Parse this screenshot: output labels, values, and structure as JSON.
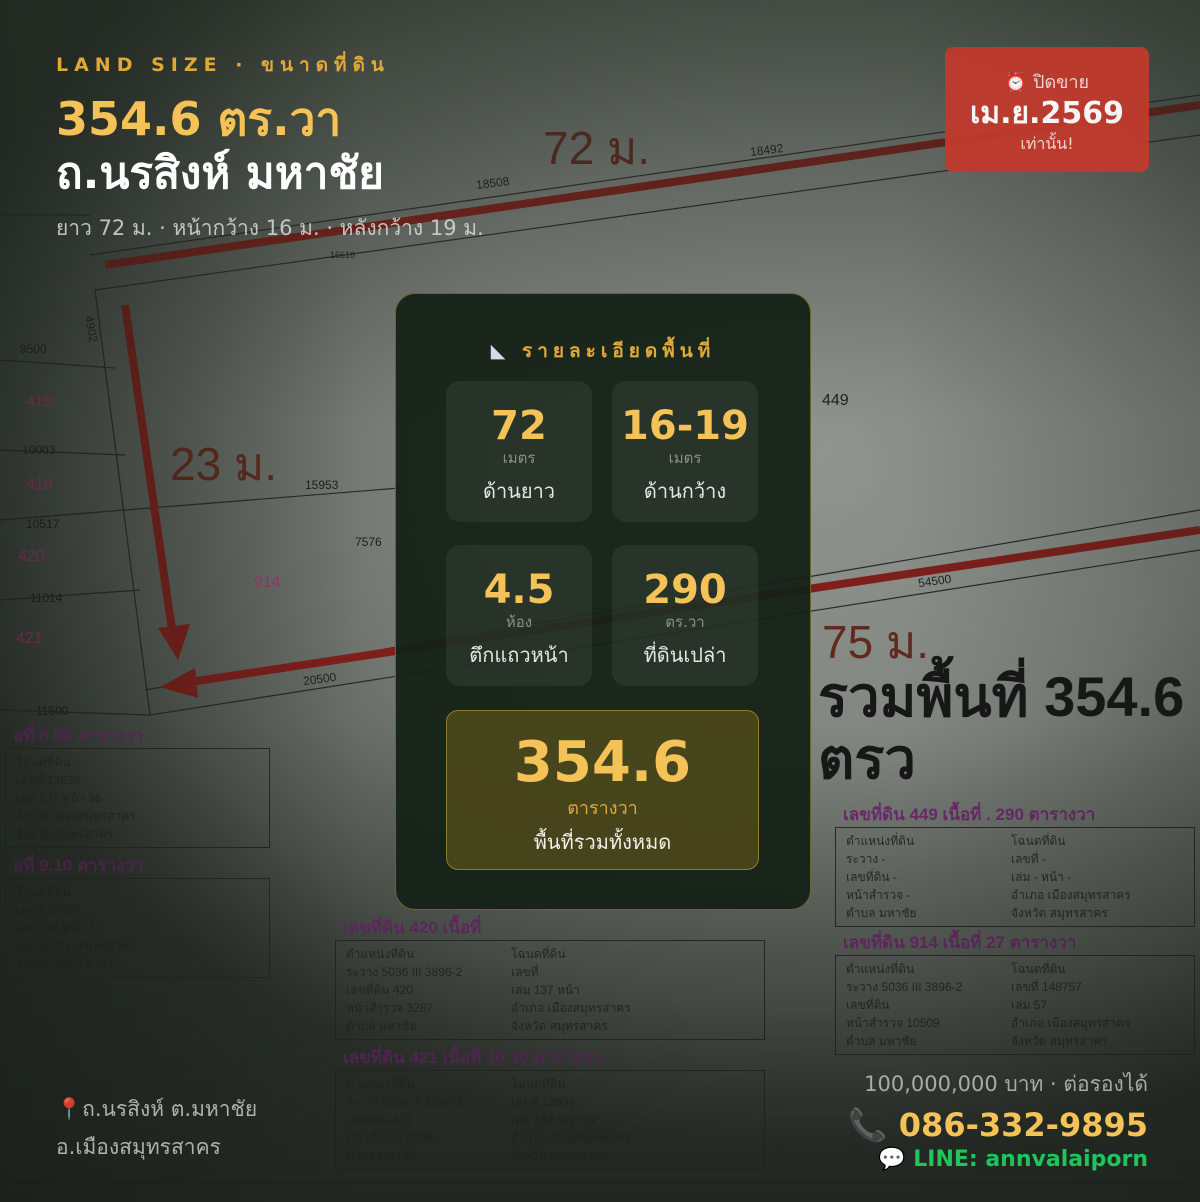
{
  "colors": {
    "accent": "#f4c257",
    "badge": "#c13a2d",
    "line": "#1fc45a",
    "parcel_label": "#b2397a",
    "table_header": "#7a2b7a",
    "survey_red": "#8b1e1a"
  },
  "hero": {
    "eyebrow": "LAND SIZE · ขนาดที่ดิน",
    "area": "354.6 ตร.วา",
    "road": "ถ.นรสิงห์ มหาชัย",
    "dimensions": "ยาว 72 ม. · หน้ากว้าง 16 ม. · หลังกว้าง 19 ม."
  },
  "badge": {
    "icon": "alarm-clock-icon",
    "label": "ปิดขาย",
    "date": "เม.ย.2569",
    "note": "เท่านั้น!"
  },
  "panel": {
    "icon": "set-square-icon",
    "title": "รายละเอียดพื้นที่",
    "tiles": [
      {
        "value": "72",
        "unit": "เมตร",
        "label": "ด้านยาว"
      },
      {
        "value": "16-19",
        "unit": "เมตร",
        "label": "ด้านกว้าง"
      },
      {
        "value": "4.5",
        "unit": "ห้อง",
        "label": "ตึกแถวหน้า"
      },
      {
        "value": "290",
        "unit": "ตร.วา",
        "label": "ที่ดินเปล่า"
      }
    ],
    "total": {
      "value": "354.6",
      "unit": "ตารางวา",
      "label": "พื้นที่รวมทั้งหมด"
    }
  },
  "location": {
    "icon": "map-pin-icon",
    "line1": "ถ.นรสิงห์ ต.มหาชัย",
    "line2": "อ.เมืองสมุทรสาคร"
  },
  "contact": {
    "price": "100,000,000 บาท · ต่อรองได้",
    "phone_icon": "phone-icon",
    "phone": "086-332-9895",
    "line_icon": "speech-bubble-icon",
    "line": "LINE: annvalaiporn"
  },
  "map": {
    "dims": [
      "72 ม.",
      "23 ม.",
      "75 ม."
    ],
    "total_label": "รวมพื้นที่ 354.6 ตรว",
    "parcels": [
      "418",
      "419",
      "420",
      "421",
      "914"
    ],
    "measures": [
      "18492",
      "18508",
      "16616",
      "15953",
      "20500",
      "54500",
      "9500",
      "10003",
      "10517",
      "11014",
      "11500",
      "4902",
      "7576",
      "449"
    ]
  },
  "tables": [
    {
      "header": "อที่         8.60  ตารางวา",
      "rows": [
        [
          "โฉนดที่ดิน",
          ""
        ],
        [
          "เลขที่   13636",
          ""
        ],
        [
          "เล่ม   137     หน้า   36",
          ""
        ],
        [
          "อำเภอ  เมืองสมุทรสาคร",
          ""
        ],
        [
          "จังหวัด  สมุทรสาคร",
          ""
        ]
      ]
    },
    {
      "header": "เลขที่ดิน  420       เนื้อที่",
      "rows": [
        [
          "ตำแหน่งที่ดิน",
          "โฉนดที่ดิน"
        ],
        [
          "ระวาง 5036 III 3896-2",
          "เลขที่"
        ],
        [
          "เลขที่ดิน  420",
          "เล่ม  137     หน้า"
        ],
        [
          "หน้าสำรวจ  3287",
          "อำเภอ  เมืองสมุทรสาคร"
        ],
        [
          "ตำบล มหาชัย",
          "จังหวัด  สมุทรสาคร"
        ]
      ]
    },
    {
      "header": "เลขที่ดิน  449     เนื้อที่  .          290  ตารางวา",
      "rows": [
        [
          "ตำแหน่งที่ดิน",
          "โฉนดที่ดิน"
        ],
        [
          "ระวาง -",
          "เลขที่   -"
        ],
        [
          "เลขที่ดิน -",
          "เล่ม   -        หน้า   -"
        ],
        [
          "หน้าสำรวจ -",
          "อำเภอ  เมืองสมุทรสาคร"
        ],
        [
          "ตำบล มหาชัย",
          "จังหวัด  สมุทรสาคร"
        ]
      ]
    },
    {
      "header": "อที่         9.10  ตารางวา",
      "rows": [
        [
          "โฉนดที่ดิน",
          ""
        ],
        [
          "เลขที่   13637",
          ""
        ],
        [
          "เล่ม   137     หน้า   37",
          ""
        ],
        [
          "อำเภอ  เมืองสมุทรสาคร",
          ""
        ],
        [
          "จังหวัด  สมุทรสาคร",
          ""
        ]
      ]
    },
    {
      "header": "เลขที่ดิน  421     เนื้อที่       10.10  ตารางวา",
      "rows": [
        [
          "ตำแหน่งที่ดิน",
          "โฉนดที่ดิน"
        ],
        [
          "ระวาง 5036 III 3896-2",
          "เลขที่     13639"
        ],
        [
          "เลขที่ดิน  421",
          "เล่ม   137     หน้า   39"
        ],
        [
          "หน้าสำรวจ  3288",
          "อำเภอ  เมืองสมุทรสาคร"
        ],
        [
          "ตำบล มหาชัย",
          "จังหวัด  สมุทรสาคร"
        ]
      ]
    },
    {
      "header": "เลขที่ดิน  914     เนื้อที่         27  ตารางวา",
      "rows": [
        [
          "ตำแหน่งที่ดิน",
          "โฉนดที่ดิน"
        ],
        [
          "ระวาง 5036 III 3896-2",
          "เลขที่   148757"
        ],
        [
          "เลขที่ดิน",
          "เล่ม         57"
        ],
        [
          "หน้าสำรวจ  10509",
          "อำเภอ  เมืองสมุทรสาคร"
        ],
        [
          "ตำบล มหาชัย",
          "จังหวัด  สมุทรสาคร"
        ]
      ]
    }
  ]
}
